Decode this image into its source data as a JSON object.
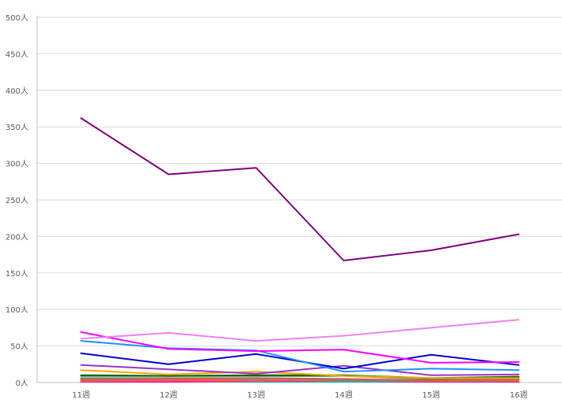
{
  "chart_data": {
    "type": "line",
    "title": "",
    "xlabel": "",
    "ylabel": "",
    "ylim": [
      0,
      500
    ],
    "y_ticks": [
      {
        "value": 0,
        "label": "0人"
      },
      {
        "value": 50,
        "label": "50人"
      },
      {
        "value": 100,
        "label": "100人"
      },
      {
        "value": 150,
        "label": "150人"
      },
      {
        "value": 200,
        "label": "200人"
      },
      {
        "value": 250,
        "label": "250人"
      },
      {
        "value": 300,
        "label": "300人"
      },
      {
        "value": 350,
        "label": "350人"
      },
      {
        "value": 400,
        "label": "400人"
      },
      {
        "value": 450,
        "label": "450人"
      },
      {
        "value": 500,
        "label": "500人"
      }
    ],
    "categories": [
      "11週",
      "12週",
      "13週",
      "14週",
      "15週",
      "16週"
    ],
    "grid": true,
    "legend": "none",
    "series": [
      {
        "color": "#800080",
        "values": [
          362,
          285,
          294,
          167,
          181,
          203
        ]
      },
      {
        "color": "#ee82ee",
        "values": [
          60,
          68,
          57,
          64,
          75,
          86
        ]
      },
      {
        "color": "#ff00ff",
        "values": [
          69,
          46,
          43,
          45,
          27,
          28
        ]
      },
      {
        "color": "#1e90ff",
        "values": [
          57,
          47,
          44,
          15,
          19,
          17
        ]
      },
      {
        "color": "#0000cd",
        "values": [
          40,
          25,
          39,
          19,
          38,
          24
        ]
      },
      {
        "color": "#9932cc",
        "values": [
          24,
          18,
          12,
          23,
          10,
          11
        ]
      },
      {
        "color": "#ffa500",
        "values": [
          17,
          11,
          15,
          9,
          6,
          6
        ]
      },
      {
        "color": "#006400",
        "values": [
          10,
          9,
          10,
          10,
          6,
          8
        ]
      },
      {
        "color": "#228b22",
        "values": [
          9,
          9,
          9,
          9,
          5,
          7
        ]
      },
      {
        "color": "#cd5c5c",
        "values": [
          3,
          5,
          6,
          5,
          3,
          5
        ]
      },
      {
        "color": "#808080",
        "values": [
          6,
          6,
          6,
          4,
          3,
          4
        ]
      },
      {
        "color": "#ff6347",
        "values": [
          2,
          3,
          3,
          4,
          2,
          3
        ]
      },
      {
        "color": "#d2691e",
        "values": [
          4,
          4,
          3,
          3,
          3,
          2
        ]
      },
      {
        "color": "#20b2aa",
        "values": [
          5,
          4,
          4,
          2,
          2,
          2
        ]
      },
      {
        "color": "#ff1493",
        "values": [
          1,
          1,
          2,
          2,
          1,
          1
        ]
      },
      {
        "color": "#00ced1",
        "values": [
          2,
          2,
          1,
          1,
          1,
          1
        ]
      }
    ]
  }
}
